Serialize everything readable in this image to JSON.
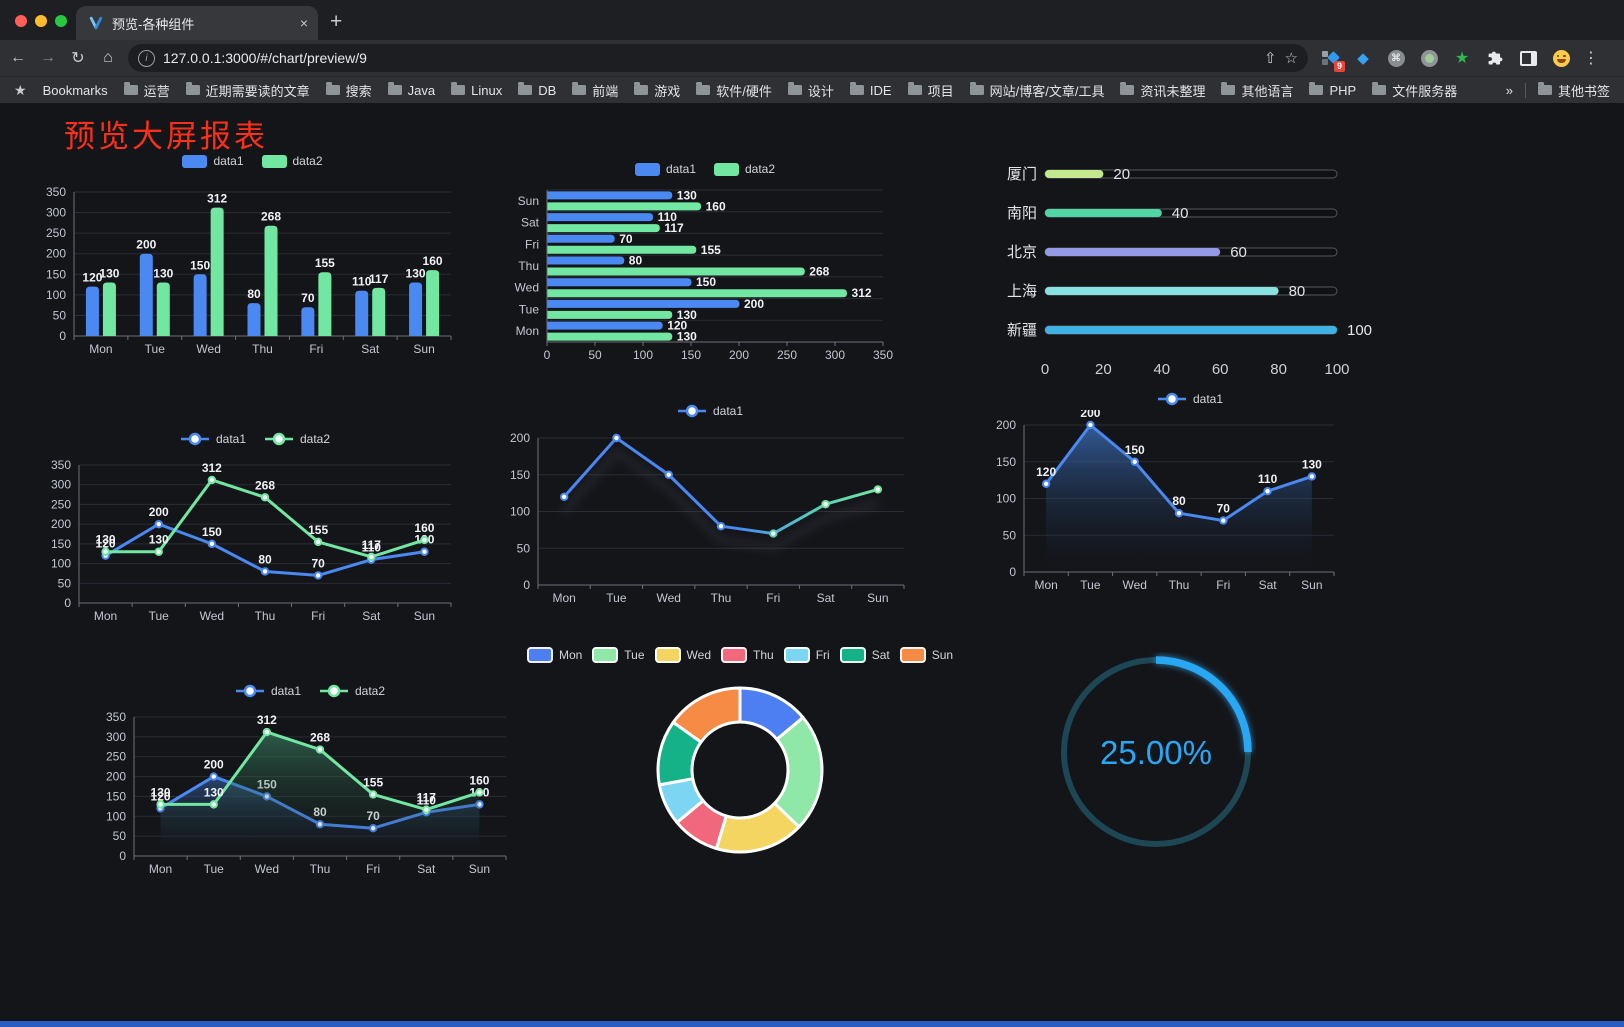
{
  "browser": {
    "tab_title": "预览-各种组件",
    "url": "127.0.0.1:3000/#/chart/preview/9",
    "icons": {
      "back": "←",
      "forward": "→",
      "reload": "↻",
      "home": "⌂",
      "info": "i",
      "share": "⇧",
      "star": "☆",
      "close": "×",
      "new_tab": "+",
      "menu": "⋮",
      "overflow": "»",
      "bookmarks_star": "★"
    },
    "extensions": [
      {
        "name": "tab-manager-icon",
        "badge": "9"
      },
      {
        "name": "gem-icon"
      },
      {
        "name": "command-icon"
      },
      {
        "name": "recorder-icon"
      },
      {
        "name": "green-star-icon"
      },
      {
        "name": "puzzle-icon"
      },
      {
        "name": "split-screen-icon"
      },
      {
        "name": "emoji-icon"
      }
    ],
    "bookmarks_label": "Bookmarks",
    "bookmarks": [
      "运营",
      "近期需要读的文章",
      "搜索",
      "Java",
      "Linux",
      "DB",
      "前端",
      "游戏",
      "软件/硬件",
      "设计",
      "IDE",
      "项目",
      "网站/博客/文章/工具",
      "资讯未整理",
      "其他语言",
      "PHP",
      "文件服务器"
    ],
    "other_bookmarks": "其他书签"
  },
  "page": {
    "title": "预览大屏报表"
  },
  "chart_data": [
    {
      "type": "bar",
      "legendStyle": "rect",
      "categories": [
        "Mon",
        "Tue",
        "Wed",
        "Thu",
        "Fri",
        "Sat",
        "Sun"
      ],
      "series": [
        {
          "name": "data1",
          "color": "#4a88f2",
          "values": [
            120,
            200,
            150,
            80,
            70,
            110,
            130
          ]
        },
        {
          "name": "data2",
          "color": "#72e7a2",
          "values": [
            130,
            130,
            312,
            268,
            155,
            117,
            160
          ]
        }
      ],
      "labels": true,
      "ymax": 350,
      "yticks": [
        0,
        50,
        100,
        150,
        200,
        250,
        300,
        350
      ],
      "m": {
        "l": 34,
        "r": 14,
        "t": 20,
        "b": 26
      }
    },
    {
      "type": "hbar",
      "legendStyle": "rect",
      "categories": [
        "Mon",
        "Tue",
        "Wed",
        "Thu",
        "Fri",
        "Sat",
        "Sun"
      ],
      "series": [
        {
          "name": "data1",
          "color": "#4a88f2",
          "values": [
            120,
            200,
            150,
            80,
            70,
            110,
            130
          ]
        },
        {
          "name": "data2",
          "color": "#72e7a2",
          "values": [
            130,
            130,
            312,
            268,
            155,
            117,
            160
          ]
        }
      ],
      "labels": true,
      "xmax": 350,
      "xticks": [
        0,
        50,
        100,
        150,
        200,
        250,
        300,
        350
      ],
      "m": {
        "l": 42,
        "r": 22,
        "t": 10,
        "b": 28
      }
    },
    {
      "type": "progress",
      "max": 100,
      "ticks": [
        0,
        20,
        40,
        60,
        80,
        100
      ],
      "items": [
        {
          "label": "厦门",
          "value": 20,
          "color": "#c3e88d"
        },
        {
          "label": "南阳",
          "value": 40,
          "color": "#50d5a5"
        },
        {
          "label": "北京",
          "value": 60,
          "color": "#959ae6"
        },
        {
          "label": "上海",
          "value": 80,
          "color": "#87e2e1"
        },
        {
          "label": "新疆",
          "value": 100,
          "color": "#3fb1e3"
        }
      ]
    },
    {
      "type": "line",
      "legendStyle": "dot",
      "categories": [
        "Mon",
        "Tue",
        "Wed",
        "Thu",
        "Fri",
        "Sat",
        "Sun"
      ],
      "series": [
        {
          "name": "data1",
          "color": "#4a88f2",
          "values": [
            120,
            200,
            150,
            80,
            70,
            110,
            130
          ]
        },
        {
          "name": "data2",
          "color": "#72e7a2",
          "values": [
            130,
            130,
            312,
            268,
            155,
            117,
            160
          ]
        }
      ],
      "labels": true,
      "ymax": 350,
      "yticks": [
        0,
        50,
        100,
        150,
        200,
        250,
        300,
        350
      ],
      "m": {
        "l": 34,
        "r": 14,
        "t": 15,
        "b": 35
      }
    },
    {
      "type": "line",
      "legendStyle": "dot",
      "categories": [
        "Mon",
        "Tue",
        "Wed",
        "Thu",
        "Fri",
        "Sat",
        "Sun"
      ],
      "series": [
        {
          "name": "data1",
          "color": "#4a88f2",
          "gradient": [
            "#4a88f2",
            "#58cdb8",
            "#72e7a2"
          ],
          "shadow": true,
          "values": [
            120,
            200,
            150,
            80,
            70,
            110,
            130
          ]
        }
      ],
      "labels": false,
      "ymax": 200,
      "yticks": [
        0,
        50,
        100,
        150,
        200
      ],
      "m": {
        "l": 38,
        "r": 16,
        "t": 16,
        "b": 20
      }
    },
    {
      "type": "line",
      "legendStyle": "dot",
      "categories": [
        "Mon",
        "Tue",
        "Wed",
        "Thu",
        "Fri",
        "Sat",
        "Sun"
      ],
      "series": [
        {
          "name": "data1",
          "color": "#4a88f2",
          "area": [
            "rgba(58,110,185,0.8)",
            "rgba(18,26,40,0.02)"
          ],
          "values": [
            120,
            200,
            150,
            80,
            70,
            110,
            130
          ]
        }
      ],
      "labels": true,
      "ymax": 200,
      "yticks": [
        0,
        50,
        100,
        150,
        200
      ],
      "m": {
        "l": 34,
        "r": 56,
        "t": 15,
        "b": 21
      }
    },
    {
      "type": "line",
      "legendStyle": "dot",
      "categories": [
        "Mon",
        "Tue",
        "Wed",
        "Thu",
        "Fri",
        "Sat",
        "Sun"
      ],
      "series": [
        {
          "name": "data1",
          "color": "#4a88f2",
          "area": [
            "rgba(58,108,180,0.55)",
            "rgba(20,28,44,0.02)"
          ],
          "values": [
            120,
            200,
            150,
            80,
            70,
            110,
            130
          ]
        },
        {
          "name": "data2",
          "color": "#72e7a2",
          "area": [
            "rgba(64,150,110,0.55)",
            "rgba(18,30,26,0.02)"
          ],
          "values": [
            130,
            130,
            312,
            268,
            155,
            117,
            160
          ]
        }
      ],
      "labels": true,
      "ymax": 350,
      "yticks": [
        0,
        50,
        100,
        150,
        200,
        250,
        300,
        350
      ],
      "m": {
        "l": 34,
        "r": 14,
        "t": 15,
        "b": 36
      }
    },
    {
      "type": "donut",
      "legendStyle": "pie",
      "categories": [
        "Mon",
        "Tue",
        "Wed",
        "Thu",
        "Fri",
        "Sat",
        "Sun"
      ],
      "values": [
        120,
        200,
        150,
        80,
        70,
        110,
        130
      ],
      "colors": [
        "#4d7ef2",
        "#8fe7a8",
        "#f5d562",
        "#f1687c",
        "#7cd5f2",
        "#16b287",
        "#f58b45"
      ]
    },
    {
      "type": "gauge",
      "value": 25,
      "max": 100,
      "label": "25.00%",
      "color": "#29a7f2",
      "track": "#1d4754"
    }
  ]
}
